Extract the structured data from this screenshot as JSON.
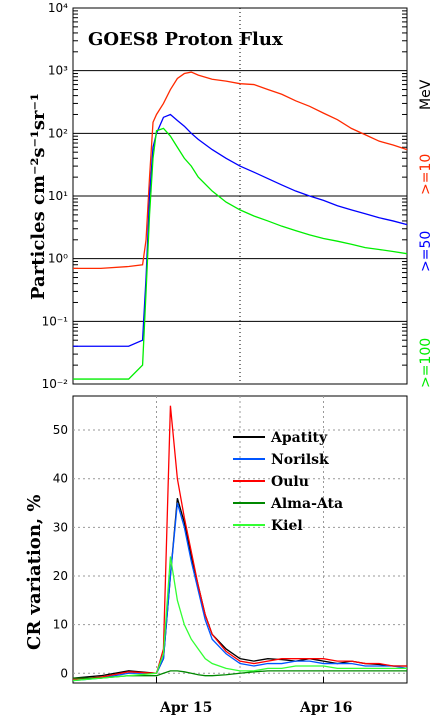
{
  "chart_data": [
    {
      "type": "line",
      "title": "GOES8 Proton Flux",
      "ylabel": "Particles cm⁻²s⁻¹sr⁻¹",
      "yscale": "log",
      "ylim": [
        0.01,
        10000
      ],
      "y_ticks": [
        "10⁻²",
        "10⁻¹",
        "10⁰",
        "10¹",
        "10²",
        "10³",
        "10⁴"
      ],
      "grid": true,
      "x_range_hours": [
        0,
        48
      ],
      "series": [
        {
          "name": ">=10",
          "color": "#ff2a00",
          "x_hours": [
            0,
            4,
            8,
            10,
            10.5,
            11,
            11.5,
            12,
            13,
            14,
            15,
            16,
            17,
            18,
            20,
            22,
            24,
            26,
            28,
            30,
            32,
            34,
            36,
            38,
            40,
            42,
            44,
            46,
            48
          ],
          "values": [
            0.7,
            0.7,
            0.75,
            0.8,
            2,
            20,
            150,
            200,
            300,
            500,
            750,
            900,
            950,
            850,
            730,
            680,
            620,
            600,
            500,
            420,
            330,
            270,
            210,
            165,
            120,
            95,
            75,
            65,
            55
          ]
        },
        {
          "name": ">=50",
          "color": "#0000ff",
          "x_hours": [
            0,
            4,
            8,
            10,
            10.5,
            11,
            11.5,
            12,
            13,
            14,
            15,
            16,
            17,
            18,
            20,
            22,
            24,
            26,
            28,
            30,
            32,
            34,
            36,
            38,
            40,
            42,
            44,
            46,
            48
          ],
          "values": [
            0.04,
            0.04,
            0.04,
            0.05,
            0.5,
            10,
            60,
            100,
            180,
            200,
            160,
            130,
            100,
            80,
            55,
            40,
            30,
            24,
            19,
            15,
            12,
            10,
            8.5,
            7,
            6,
            5.2,
            4.5,
            4,
            3.5
          ]
        },
        {
          "name": ">=100",
          "color": "#00ee00",
          "x_hours": [
            0,
            4,
            8,
            10,
            10.5,
            11,
            11.5,
            12,
            13,
            14,
            15,
            16,
            17,
            18,
            20,
            22,
            24,
            26,
            28,
            30,
            32,
            34,
            36,
            38,
            40,
            42,
            44,
            46,
            48
          ],
          "values": [
            0.012,
            0.012,
            0.012,
            0.02,
            0.3,
            5,
            40,
            110,
            120,
            90,
            60,
            40,
            30,
            20,
            12,
            8,
            6,
            4.8,
            4,
            3.3,
            2.8,
            2.4,
            2.1,
            1.9,
            1.7,
            1.5,
            1.4,
            1.3,
            1.2
          ]
        }
      ],
      "unit_label": "MeV"
    },
    {
      "type": "line",
      "ylabel": "CR variation, %",
      "ylim": [
        -2,
        57
      ],
      "y_ticks": [
        0,
        10,
        20,
        30,
        40,
        50
      ],
      "x_tick_labels": [
        "Apr 15",
        "Apr 16"
      ],
      "x_range_hours": [
        0,
        48
      ],
      "grid": true,
      "legend": "top-right",
      "series": [
        {
          "name": "Apatity",
          "color": "#000000",
          "x_hours": [
            0,
            4,
            8,
            12,
            13,
            14,
            15,
            16,
            17,
            18,
            19,
            20,
            22,
            24,
            26,
            28,
            30,
            32,
            34,
            36,
            38,
            40,
            42,
            44,
            46,
            48
          ],
          "values": [
            -1,
            -0.5,
            0.5,
            0,
            3,
            20,
            36,
            31,
            24,
            18,
            12,
            8,
            5,
            3,
            2.5,
            3,
            2.8,
            2.5,
            3,
            2.5,
            2,
            2.5,
            2,
            1.8,
            1.5,
            1.5
          ]
        },
        {
          "name": "Norilsk",
          "color": "#0055ff",
          "x_hours": [
            0,
            4,
            8,
            12,
            13,
            14,
            15,
            16,
            17,
            18,
            19,
            20,
            22,
            24,
            26,
            28,
            30,
            32,
            34,
            36,
            38,
            40,
            42,
            44,
            46,
            48
          ],
          "values": [
            -1.5,
            -1,
            0,
            0,
            3,
            20,
            35,
            30,
            23,
            17,
            11,
            7,
            4,
            2,
            1.5,
            2,
            2,
            2.5,
            2.5,
            2,
            2,
            2,
            1.5,
            1.5,
            1.5,
            1
          ]
        },
        {
          "name": "Oulu",
          "color": "#ff0000",
          "x_hours": [
            0,
            4,
            8,
            12,
            13,
            14,
            15,
            16,
            17,
            18,
            19,
            20,
            22,
            24,
            26,
            28,
            30,
            32,
            34,
            36,
            38,
            40,
            42,
            44,
            46,
            48
          ],
          "values": [
            -1.2,
            -0.8,
            0.3,
            0,
            5,
            55,
            40,
            32,
            25,
            18,
            12,
            8,
            4.5,
            2.5,
            2,
            2.5,
            3,
            3,
            3,
            3,
            2.5,
            2.5,
            2,
            2,
            1.5,
            1.5
          ]
        },
        {
          "name": "Alma-Ata",
          "color": "#008800",
          "x_hours": [
            0,
            4,
            8,
            12,
            13,
            14,
            15,
            16,
            17,
            18,
            19,
            20,
            22,
            24,
            26,
            28,
            30,
            32,
            34,
            36,
            38,
            40,
            42,
            44,
            46,
            48
          ],
          "values": [
            -1,
            -1,
            -0.5,
            -0.5,
            0,
            0.5,
            0.5,
            0.3,
            0,
            -0.3,
            -0.5,
            -0.5,
            -0.3,
            0,
            0.3,
            0.5,
            0.5,
            0.5,
            0.5,
            0.5,
            0.5,
            0.5,
            0.5,
            0.5,
            0.5,
            0.5
          ]
        },
        {
          "name": "Kiel",
          "color": "#33ff33",
          "x_hours": [
            0,
            4,
            8,
            12,
            13,
            14,
            15,
            16,
            17,
            18,
            19,
            20,
            22,
            24,
            26,
            28,
            30,
            32,
            34,
            36,
            38,
            40,
            42,
            44,
            46,
            48
          ],
          "values": [
            -1.5,
            -1,
            -0.5,
            0,
            4,
            24,
            15,
            10,
            7,
            5,
            3,
            2,
            1,
            0.5,
            0.5,
            1,
            1,
            1.5,
            1.5,
            1.5,
            1,
            1,
            1,
            1,
            1,
            1
          ]
        }
      ]
    }
  ]
}
